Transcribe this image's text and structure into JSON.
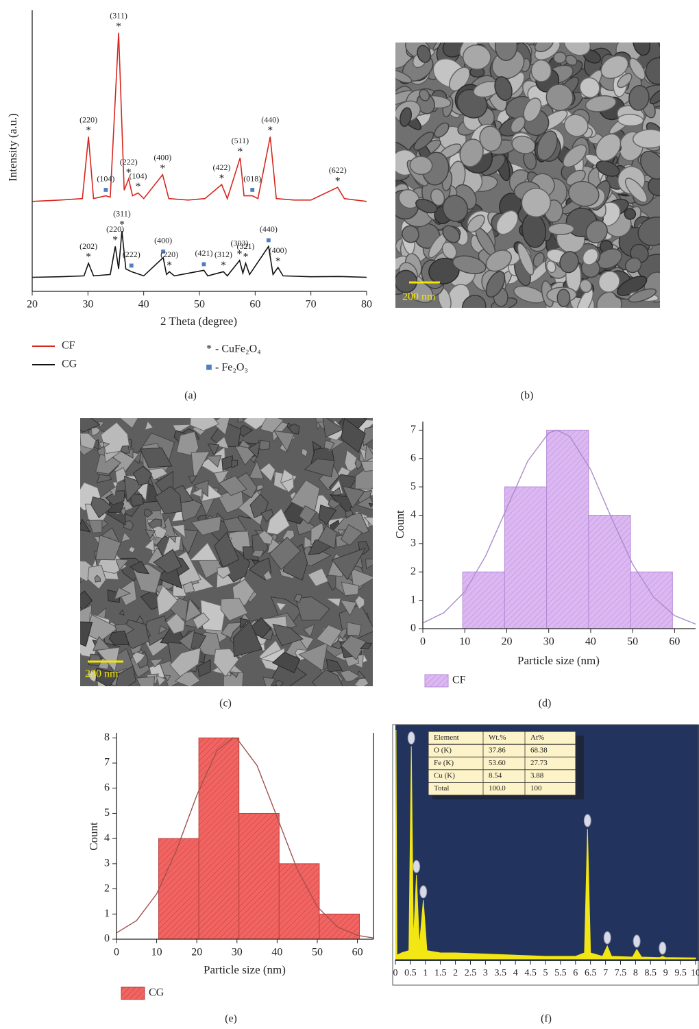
{
  "chart_data": [
    {
      "type": "line",
      "panel_label": "(a)",
      "xlabel": "2 Theta (degree)",
      "ylabel": "Intensity (a.u.)",
      "xlim": [
        20,
        80
      ],
      "xticks": [
        20,
        30,
        40,
        50,
        60,
        70,
        80
      ],
      "ylim": [
        0,
        100
      ],
      "series": [
        {
          "name": "CF",
          "color": "#d7261e",
          "x": [
            20,
            25,
            29,
            30.1,
            31,
            33.2,
            34,
            35.5,
            36.5,
            37.3,
            38,
            39,
            40,
            43.4,
            44.5,
            48,
            51,
            54,
            55,
            57.3,
            58,
            59.5,
            60.5,
            62.7,
            63.8,
            67,
            70,
            74.8,
            76,
            80
          ],
          "values": [
            32,
            32.5,
            33,
            55,
            33,
            34,
            33.5,
            92,
            36,
            40,
            34,
            35,
            33,
            41.5,
            33,
            32.5,
            33,
            38,
            33,
            47.5,
            34,
            34,
            33,
            55,
            33,
            32.5,
            32.5,
            37,
            33,
            32
          ],
          "peaks": [
            {
              "x": 30.1,
              "y": 55,
              "label": "(220)",
              "symbol": "*"
            },
            {
              "x": 33.2,
              "y": 34,
              "label": "(104)",
              "symbol": "■"
            },
            {
              "x": 35.5,
              "y": 92,
              "label": "(311)",
              "symbol": "*"
            },
            {
              "x": 37.3,
              "y": 40,
              "label": "(222)",
              "symbol": "*"
            },
            {
              "x": 39,
              "y": 35,
              "label": "(104)",
              "symbol": "*"
            },
            {
              "x": 43.4,
              "y": 41.5,
              "label": "(400)",
              "symbol": "*"
            },
            {
              "x": 54,
              "y": 38,
              "label": "(422)",
              "symbol": "*"
            },
            {
              "x": 57.3,
              "y": 47.5,
              "label": "(511)",
              "symbol": "*"
            },
            {
              "x": 59.5,
              "y": 34,
              "label": "(018)",
              "symbol": "■"
            },
            {
              "x": 62.7,
              "y": 55,
              "label": "(440)",
              "symbol": "*"
            },
            {
              "x": 74.8,
              "y": 37,
              "label": "(622)",
              "symbol": "*"
            }
          ]
        },
        {
          "name": "CG",
          "color": "#111111",
          "x": [
            20,
            25,
            29.3,
            30.1,
            31,
            34,
            34.9,
            35.5,
            36.1,
            36.8,
            37.8,
            40,
            43.5,
            44.1,
            44.6,
            45.5,
            50.8,
            51.5,
            54.3,
            55,
            57.2,
            57.8,
            58.3,
            59,
            62.4,
            63.2,
            64.1,
            65,
            70,
            75,
            80
          ],
          "values": [
            5,
            5.2,
            5.5,
            10,
            5.5,
            6,
            16,
            8,
            21.5,
            8,
            7,
            5.5,
            12,
            6,
            7,
            5.5,
            7.5,
            5.5,
            7,
            5.5,
            11,
            6.5,
            10,
            6,
            16,
            6,
            8.5,
            5.5,
            5.2,
            5.3,
            5
          ],
          "peaks": [
            {
              "x": 30.1,
              "y": 10,
              "label": "(202)",
              "symbol": "*"
            },
            {
              "x": 34.9,
              "y": 16,
              "label": "(220)",
              "symbol": "*"
            },
            {
              "x": 36.1,
              "y": 21.5,
              "label": "(311)",
              "symbol": "*"
            },
            {
              "x": 37.8,
              "y": 7,
              "label": "(222)",
              "symbol": "■"
            },
            {
              "x": 43.5,
              "y": 12,
              "label": "(400)",
              "symbol": "■"
            },
            {
              "x": 44.6,
              "y": 7,
              "label": "(220)",
              "symbol": "*"
            },
            {
              "x": 50.8,
              "y": 7.5,
              "label": "(421)",
              "symbol": "■"
            },
            {
              "x": 54.3,
              "y": 7,
              "label": "(312)",
              "symbol": "*"
            },
            {
              "x": 57.2,
              "y": 11,
              "label": "(303)",
              "symbol": "*"
            },
            {
              "x": 58.3,
              "y": 10,
              "label": "(321)",
              "symbol": "*"
            },
            {
              "x": 62.4,
              "y": 16,
              "label": "(440)",
              "symbol": "■"
            },
            {
              "x": 64.1,
              "y": 8.5,
              "label": "(400)",
              "symbol": "*"
            }
          ]
        }
      ],
      "phases": [
        {
          "symbol": "*",
          "label": "- CuFe₂O₄",
          "color": "#222222"
        },
        {
          "symbol": "■",
          "label": "- Fe₂O₃",
          "color": "#4f7fc0"
        }
      ]
    },
    {
      "type": "histogram",
      "panel_label": "(d)",
      "xlabel": "Particle size (nm)",
      "ylabel": "Count",
      "xlim": [
        0,
        65
      ],
      "xticks": [
        0,
        10,
        20,
        30,
        40,
        50,
        60
      ],
      "ylim": [
        0,
        7.3
      ],
      "yticks": [
        0,
        1,
        2,
        3,
        4,
        5,
        6,
        7
      ],
      "name": "CF",
      "color": "#dcb8f2",
      "edgecolor": "#b58ad6",
      "bins": [
        9.5,
        19.5,
        29.5,
        39.5,
        49.5,
        59.5
      ],
      "values": [
        2,
        5,
        7,
        4,
        2
      ],
      "fit": {
        "color": "#a98bc9",
        "x": [
          0,
          5,
          10,
          15,
          20,
          25,
          30,
          32,
          35,
          40,
          45,
          50,
          55,
          60,
          65
        ],
        "values": [
          0.2,
          0.56,
          1.3,
          2.57,
          4.25,
          5.91,
          6.9,
          7,
          6.78,
          5.61,
          3.89,
          2.27,
          1.11,
          0.46,
          0.16
        ]
      }
    },
    {
      "type": "histogram",
      "panel_label": "(e)",
      "xlabel": "Particle size (nm)",
      "ylabel": "Count",
      "xlim": [
        0,
        64
      ],
      "xticks": [
        0,
        10,
        20,
        30,
        40,
        50,
        60
      ],
      "ylim": [
        0,
        8.2
      ],
      "yticks": [
        0,
        1,
        2,
        3,
        4,
        5,
        6,
        7,
        8
      ],
      "name": "CG",
      "color": "#f26462",
      "edgecolor": "#b8403d",
      "bins": [
        10.5,
        20.5,
        30.5,
        40.5,
        50.5,
        60.5
      ],
      "values": [
        4,
        8,
        5,
        3,
        1
      ],
      "fit": {
        "color": "#a0524d",
        "x": [
          0,
          5,
          10,
          15,
          20,
          25,
          29,
          30,
          35,
          40,
          45,
          50,
          55,
          60,
          64
        ],
        "values": [
          0.25,
          0.74,
          1.8,
          3.56,
          5.72,
          7.49,
          8,
          7.97,
          6.9,
          4.85,
          2.78,
          1.29,
          0.49,
          0.15,
          0.05
        ]
      }
    },
    {
      "type": "area",
      "panel_label": "(f)",
      "background": "#22335e",
      "color": "#f2e614",
      "xlim": [
        0,
        10
      ],
      "xticks": [
        0,
        0.5,
        1,
        1.5,
        2,
        2.5,
        3,
        3.5,
        4,
        4.5,
        5,
        5.5,
        6,
        6.5,
        7,
        7.5,
        8,
        8.5,
        9,
        9.5,
        10
      ],
      "ylim": [
        0,
        100
      ],
      "x": [
        0,
        0.02,
        0.05,
        0.2,
        0.45,
        0.53,
        0.6,
        0.7,
        0.8,
        0.93,
        1.05,
        1.5,
        2,
        3,
        4,
        5,
        6,
        6.3,
        6.4,
        6.5,
        6.9,
        7.06,
        7.2,
        7.9,
        8.04,
        8.2,
        8.8,
        8.9,
        9,
        10
      ],
      "values": [
        0,
        100,
        2,
        3,
        4,
        93,
        8,
        37,
        6,
        26,
        4,
        3,
        3,
        2.5,
        2,
        1.5,
        1.5,
        3,
        57,
        3,
        1.5,
        6,
        1.5,
        1.2,
        4.5,
        1.2,
        1,
        1.5,
        1,
        0.8
      ],
      "markers": [
        0.53,
        0.7,
        0.93,
        6.4,
        7.06,
        8.04,
        8.9
      ],
      "table": {
        "header": [
          "Element",
          "Wt.%",
          "At%"
        ],
        "rows": [
          [
            "O (K)",
            "37.86",
            "68.38"
          ],
          [
            "Fe (K)",
            "53.60",
            "27.73"
          ],
          [
            "Cu (K)",
            "8.54",
            "3.88"
          ],
          [
            "Total",
            "100.0",
            "100"
          ]
        ]
      }
    }
  ],
  "images": [
    {
      "panel_label": "(b)",
      "scale_bar": "200 nm"
    },
    {
      "panel_label": "(c)",
      "scale_bar": "200 nm"
    }
  ]
}
